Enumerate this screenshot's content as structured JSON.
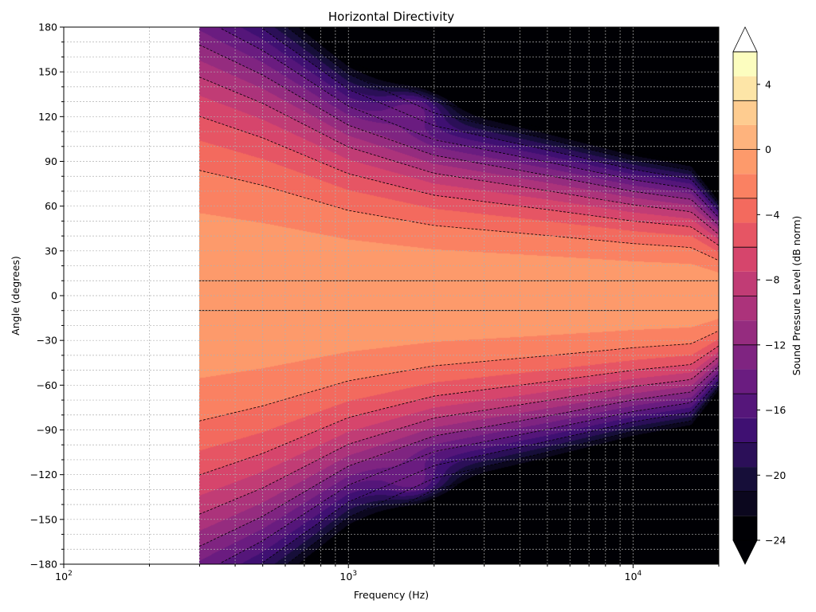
{
  "chart_data": {
    "type": "heatmap",
    "title": "Horizontal Directivity",
    "xlabel": "Frequency (Hz)",
    "ylabel": "Angle (degrees)",
    "colorbar_label": "Sound Pressure Level (dB norm)",
    "x_scale": "log",
    "xlim": [
      100,
      20000
    ],
    "ylim": [
      -180,
      180
    ],
    "x_ticks": [
      {
        "value": 100,
        "base": "10",
        "exp": "2"
      },
      {
        "value": 1000,
        "base": "10",
        "exp": "3"
      },
      {
        "value": 10000,
        "base": "10",
        "exp": "4"
      }
    ],
    "y_ticks": [
      "180",
      "150",
      "120",
      "90",
      "60",
      "30",
      "0",
      "−30",
      "−60",
      "−90",
      "−120",
      "−150",
      "−180"
    ],
    "y_tick_values": [
      180,
      150,
      120,
      90,
      60,
      30,
      0,
      -30,
      -60,
      -90,
      -120,
      -150,
      -180
    ],
    "colorbar": {
      "min": -24,
      "max": 6,
      "step": 1.5,
      "extend": "both",
      "tick_labels": [
        "4",
        "0",
        "−4",
        "−8",
        "−12",
        "−16",
        "−20",
        "−24"
      ],
      "tick_values": [
        4,
        0,
        -4,
        -8,
        -12,
        -16,
        -20,
        -24
      ],
      "colormap": "magma"
    },
    "data_freq_range": [
      300,
      20000
    ],
    "onaxis_db": -0.5,
    "beamwidth_profile": [
      {
        "freq": 300,
        "half_angle_6db": 125
      },
      {
        "freq": 500,
        "half_angle_6db": 110
      },
      {
        "freq": 1000,
        "half_angle_6db": 85
      },
      {
        "freq": 2000,
        "half_angle_6db": 70
      },
      {
        "freq": 5000,
        "half_angle_6db": 60
      },
      {
        "freq": 10000,
        "half_angle_6db": 52
      },
      {
        "freq": 16000,
        "half_angle_6db": 48
      },
      {
        "freq": 20000,
        "half_angle_6db": 35
      }
    ],
    "grid": true
  }
}
